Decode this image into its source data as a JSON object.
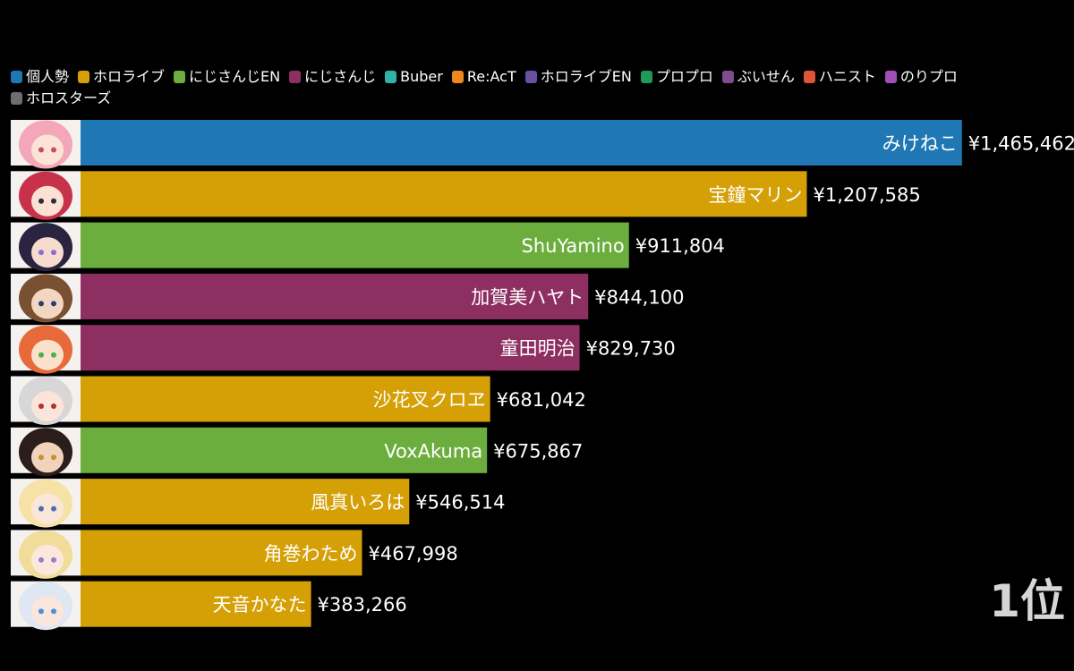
{
  "chart_data": {
    "type": "bar",
    "orientation": "horizontal",
    "title": "",
    "xlabel": "",
    "ylabel": "",
    "xlim": [
      0,
      1500000
    ],
    "legend_position": "top",
    "legend": [
      {
        "label": "個人勢",
        "color": "#1f77b4"
      },
      {
        "label": "ホロライブ",
        "color": "#d4a006"
      },
      {
        "label": "にじさんじEN",
        "color": "#6cae3e"
      },
      {
        "label": "にじさんじ",
        "color": "#8e2f62"
      },
      {
        "label": "Buber",
        "color": "#2fb3a8"
      },
      {
        "label": "Re:AcT",
        "color": "#f0871a"
      },
      {
        "label": "ホロライブEN",
        "color": "#6a4fa3"
      },
      {
        "label": "プロプロ",
        "color": "#1f9a5b"
      },
      {
        "label": "ぶいせん",
        "color": "#7e4c8f"
      },
      {
        "label": "ハニスト",
        "color": "#e0553a"
      },
      {
        "label": "のりプロ",
        "color": "#a04fb5"
      },
      {
        "label": "ホロスターズ",
        "color": "#6e6e6e"
      }
    ],
    "bars": [
      {
        "name": "みけねこ",
        "group": "個人勢",
        "value": 1465462,
        "value_label": "¥1,465,462"
      },
      {
        "name": "宝鐘マリン",
        "group": "ホロライブ",
        "value": 1207585,
        "value_label": "¥1,207,585"
      },
      {
        "name": "ShuYamino",
        "group": "にじさんじEN",
        "value": 911804,
        "value_label": "¥911,804"
      },
      {
        "name": "加賀美ハヤト",
        "group": "にじさんじ",
        "value": 844100,
        "value_label": "¥844,100"
      },
      {
        "name": "童田明治",
        "group": "にじさんじ",
        "value": 829730,
        "value_label": "¥829,730"
      },
      {
        "name": "沙花叉クロヱ",
        "group": "ホロライブ",
        "value": 681042,
        "value_label": "¥681,042"
      },
      {
        "name": "VoxAkuma",
        "group": "にじさんじEN",
        "value": 675867,
        "value_label": "¥675,867"
      },
      {
        "name": "風真いろは",
        "group": "ホロライブ",
        "value": 546514,
        "value_label": "¥546,514"
      },
      {
        "name": "角巻わため",
        "group": "ホロライブ",
        "value": 467998,
        "value_label": "¥467,998"
      },
      {
        "name": "天音かなた",
        "group": "ホロライブ",
        "value": 383266,
        "value_label": "¥383,266"
      }
    ]
  },
  "avatars": [
    {
      "hair": "#f3a7b8",
      "skin": "#fbe3d6",
      "accent": "#c44d6e"
    },
    {
      "hair": "#c8314a",
      "skin": "#fbe0d3",
      "accent": "#2b2b3a"
    },
    {
      "hair": "#2a2440",
      "skin": "#f6dccd",
      "accent": "#8e6ad6"
    },
    {
      "hair": "#7a5032",
      "skin": "#f3d6c0",
      "accent": "#1e3f7a"
    },
    {
      "hair": "#e86a3a",
      "skin": "#fbe0cc",
      "accent": "#4caf50"
    },
    {
      "hair": "#d7d7d7",
      "skin": "#fbe4da",
      "accent": "#b73030"
    },
    {
      "hair": "#2a1d1a",
      "skin": "#f1d2bd",
      "accent": "#c8912b"
    },
    {
      "hair": "#f6e2a7",
      "skin": "#fbe6da",
      "accent": "#4b6fb0"
    },
    {
      "hair": "#f2dc9a",
      "skin": "#fbe7dc",
      "accent": "#9b7bcf"
    },
    {
      "hair": "#dfe8f2",
      "skin": "#fbe6dd",
      "accent": "#4f8ed8"
    }
  ],
  "rank_label": "1位"
}
